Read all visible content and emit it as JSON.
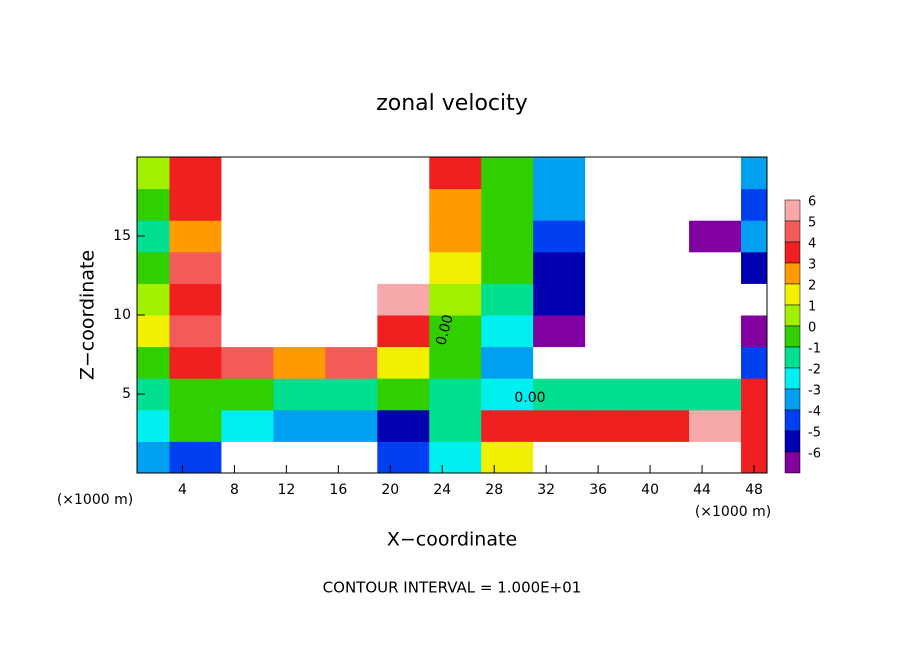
{
  "chart_data": {
    "type": "contour",
    "title": "zonal velocity",
    "x_label": "X−coordinate",
    "y_label": "Z−coordinate",
    "x_unit_left": "(×1000 m)",
    "x_unit_right": "(×1000 m)",
    "footer": "CONTOUR INTERVAL = 1.000E+01",
    "annotations": [
      "0.00",
      "0.00"
    ],
    "xlim": [
      0.5,
      49
    ],
    "ylim": [
      0,
      20
    ],
    "xticks": [
      4,
      8,
      12,
      16,
      20,
      24,
      28,
      32,
      36,
      40,
      44,
      48
    ],
    "yticks": [
      5,
      10,
      15
    ],
    "x": [
      1,
      5,
      9,
      13,
      17,
      21,
      25,
      29,
      33,
      37,
      41,
      45,
      49
    ],
    "y": [
      1,
      3,
      5,
      7,
      9,
      11,
      13,
      15,
      17,
      19
    ],
    "z": [
      [
        -3,
        -4,
        -10,
        -10,
        -10,
        -4,
        -2,
        2,
        10,
        10,
        10,
        10,
        4
      ],
      [
        -2,
        0,
        -2,
        -3,
        -3,
        -5,
        -1,
        4,
        4,
        4,
        4,
        6,
        4
      ],
      [
        -1,
        0,
        0,
        -1,
        -1,
        0,
        -1,
        -2,
        -1,
        -1,
        -1,
        -1,
        4
      ],
      [
        0,
        4,
        5,
        3,
        5,
        2,
        0,
        -3,
        -8,
        -8,
        -8,
        -8,
        -4
      ],
      [
        2,
        5,
        10,
        10,
        8,
        4,
        0,
        -2,
        -6,
        -10,
        -10,
        -10,
        -6
      ],
      [
        1,
        4,
        10,
        10,
        10,
        6,
        1,
        -1,
        -5,
        -10,
        -10,
        -10,
        -10
      ],
      [
        0,
        5,
        10,
        10,
        10,
        8,
        2,
        0,
        -5,
        -10,
        -10,
        -10,
        -5
      ],
      [
        -1,
        3,
        10,
        10,
        10,
        10,
        3,
        0,
        -4,
        -10,
        -10,
        -6,
        -3
      ],
      [
        0,
        4,
        10,
        10,
        10,
        10,
        3,
        0,
        -3,
        -10,
        -10,
        -10,
        -4
      ],
      [
        1,
        4,
        10,
        10,
        10,
        10,
        4,
        0,
        -3,
        -10,
        -10,
        -10,
        -3
      ]
    ],
    "colorbar_ticks": [
      6,
      5,
      4,
      3,
      2,
      1,
      0,
      -1,
      -2,
      -3,
      -4,
      -5,
      -6
    ],
    "colorbar_colors": [
      "#f7a8a8",
      "#f55a5a",
      "#f02020",
      "#ff9a00",
      "#f0f000",
      "#a0f000",
      "#30d000",
      "#00e090",
      "#00f0f0",
      "#00a0f0",
      "#0040f0",
      "#0000b0",
      "#8000a0"
    ]
  }
}
